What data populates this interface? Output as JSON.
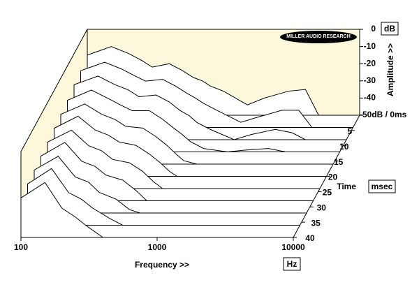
{
  "chart_data": {
    "type": "waterfall",
    "logo": "MILLER AUDIO RESEARCH",
    "xlabel": "Frequency >>",
    "xunit": "Hz",
    "ylabel": "Amplitude >>",
    "yunit": "dB",
    "zlabel": "Time",
    "zunit": "msec",
    "x": [
      100,
      150,
      200,
      250,
      300,
      400,
      500,
      600,
      700,
      800,
      1000,
      1500,
      2000,
      3000,
      4000,
      5000,
      10000
    ],
    "xlim": [
      100,
      10000
    ],
    "xscale": "log",
    "xticks": [
      100,
      1000,
      10000
    ],
    "ylim": [
      -50,
      0
    ],
    "yticks": [
      0,
      -10,
      -20,
      -30,
      -40,
      {
        "value": -50,
        "label": "-50dB / 0ms"
      }
    ],
    "zlim": [
      0,
      40
    ],
    "zticks": [
      5,
      10,
      15,
      20,
      25,
      30,
      35,
      40
    ],
    "line_color": "#000000",
    "wall_color": "#fdf8dc",
    "series": [
      {
        "time": 0,
        "values": [
          -15,
          -10,
          -14,
          -18,
          -22,
          -20,
          -24,
          -28,
          -30,
          -33,
          -36,
          -44,
          -40,
          -36,
          -35,
          -50,
          -50
        ]
      },
      {
        "time": 4,
        "values": [
          -17,
          -12,
          -16,
          -20,
          -23,
          -22,
          -26,
          -30,
          -33,
          -36,
          -40,
          -47,
          -44,
          -40,
          -40,
          -50,
          -50
        ]
      },
      {
        "time": 8,
        "values": [
          -18,
          -13,
          -18,
          -21,
          -25,
          -24,
          -28,
          -33,
          -36,
          -40,
          -44,
          -50,
          -47,
          -44,
          -46,
          -50,
          -50
        ]
      },
      {
        "time": 12,
        "values": [
          -20,
          -14,
          -19,
          -23,
          -26,
          -26,
          -31,
          -36,
          -40,
          -44,
          -48,
          -50,
          -49,
          -48,
          -50,
          -50,
          -50
        ]
      },
      {
        "time": 16,
        "values": [
          -21,
          -15,
          -21,
          -24,
          -28,
          -29,
          -34,
          -39,
          -44,
          -48,
          -50,
          -50,
          -50,
          -50,
          -50,
          -50,
          -50
        ]
      },
      {
        "time": 20,
        "values": [
          -22,
          -15,
          -23,
          -26,
          -30,
          -32,
          -37,
          -42,
          -47,
          -50,
          -50,
          -50,
          -50,
          -50,
          -50,
          -50,
          -50
        ]
      },
      {
        "time": 24,
        "values": [
          -23,
          -16,
          -25,
          -28,
          -33,
          -35,
          -40,
          -46,
          -50,
          -50,
          -50,
          -50,
          -50,
          -50,
          -50,
          -50,
          -50
        ]
      },
      {
        "time": 28,
        "values": [
          -24,
          -16,
          -27,
          -30,
          -35,
          -38,
          -44,
          -50,
          -50,
          -50,
          -50,
          -50,
          -50,
          -50,
          -50,
          -50,
          -50
        ]
      },
      {
        "time": 32,
        "values": [
          -25,
          -17,
          -29,
          -32,
          -38,
          -42,
          -48,
          -50,
          -50,
          -50,
          -50,
          -50,
          -50,
          -50,
          -50,
          -50,
          -50
        ]
      },
      {
        "time": 36,
        "values": [
          -26,
          -17,
          -31,
          -35,
          -40,
          -46,
          -50,
          -50,
          -50,
          -50,
          -50,
          -50,
          -50,
          -50,
          -50,
          -50,
          -50
        ]
      },
      {
        "time": 40,
        "values": [
          -27,
          -18,
          -33,
          -38,
          -43,
          -50,
          -50,
          -50,
          -50,
          -50,
          -50,
          -50,
          -50,
          -50,
          -50,
          -50,
          -50
        ]
      }
    ]
  }
}
